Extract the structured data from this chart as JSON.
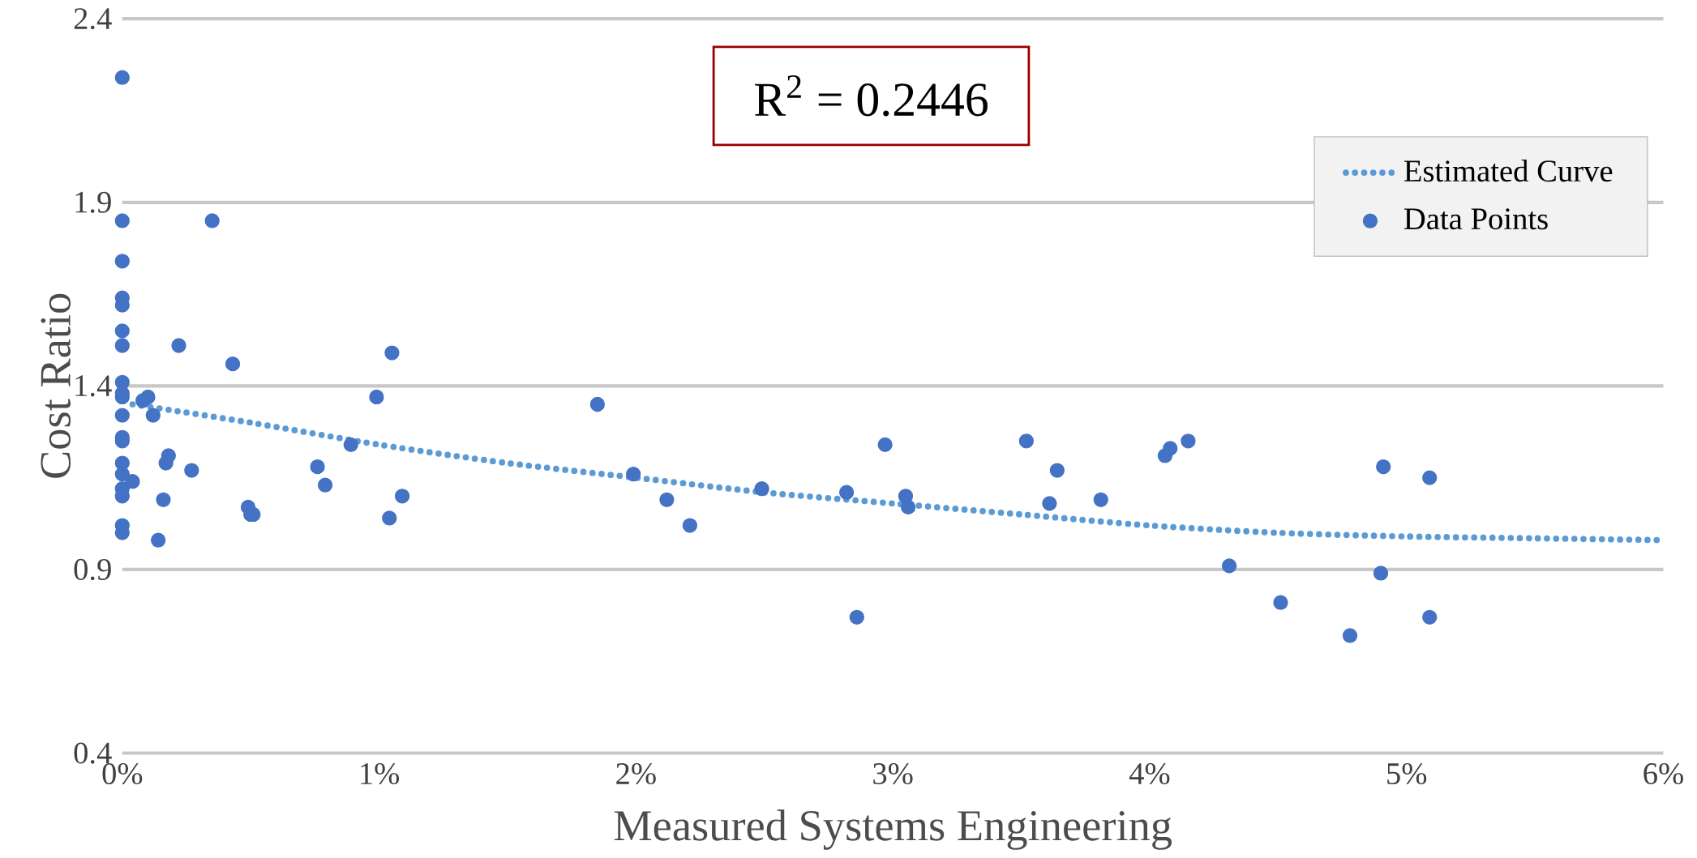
{
  "chart_data": {
    "type": "scatter",
    "xlabel": "Measured Systems Engineering",
    "ylabel": "Cost Ratio",
    "annotations": [
      "R$^{2}$ = 0.2446"
    ],
    "xlim": [
      0,
      6
    ],
    "ylim": [
      0.4,
      2.4
    ],
    "xticks": [
      {
        "value": 0,
        "label": "0%"
      },
      {
        "value": 1,
        "label": "1%"
      },
      {
        "value": 2,
        "label": "2%"
      },
      {
        "value": 3,
        "label": "3%"
      },
      {
        "value": 4,
        "label": "4%"
      },
      {
        "value": 5,
        "label": "5%"
      },
      {
        "value": 6,
        "label": "6%"
      }
    ],
    "yticks": [
      0.4,
      0.9,
      1.4,
      1.9,
      2.4
    ],
    "grid": "y",
    "legend": "top right",
    "series": [
      {
        "name": "Estimated Curve",
        "type": "line",
        "line_style": "dotted",
        "marker": "none",
        "color": "#5b9bd5",
        "x": [
          0.04,
          0.5,
          1,
          1.5,
          2,
          2.5,
          3,
          3.5,
          4,
          4.5,
          5,
          5.5,
          6
        ],
        "values": [
          1.35,
          1.3,
          1.24,
          1.19,
          1.15,
          1.11,
          1.08,
          1.05,
          1.02,
          1.0,
          0.99,
          0.985,
          0.98
        ]
      },
      {
        "name": "Data Points",
        "marker": "circle",
        "color": "#4472c4",
        "x": [
          0,
          0,
          0,
          0,
          0,
          0,
          0,
          0,
          0,
          0,
          0,
          0,
          0,
          0,
          0,
          0,
          0,
          0,
          0,
          0.04,
          0.08,
          0.1,
          0.12,
          0.14,
          0.16,
          0.17,
          0.18,
          0.22,
          0.27,
          0.35,
          0.43,
          0.49,
          0.5,
          0.51,
          0.76,
          0.79,
          0.89,
          0.99,
          1.04,
          1.05,
          1.09,
          1.85,
          1.99,
          2.12,
          2.21,
          2.49,
          2.82,
          2.86,
          2.97,
          3.05,
          3.06,
          3.52,
          3.61,
          3.64,
          3.81,
          4.06,
          4.08,
          4.15,
          4.31,
          4.51,
          4.78,
          4.9,
          4.91,
          5.09,
          5.09
        ],
        "values": [
          2.24,
          1.85,
          1.74,
          1.64,
          1.62,
          1.55,
          1.51,
          1.41,
          1.38,
          1.37,
          1.32,
          1.26,
          1.25,
          1.19,
          1.16,
          1.12,
          1.1,
          1.02,
          1.0,
          1.14,
          1.36,
          1.37,
          1.32,
          0.98,
          1.09,
          1.19,
          1.21,
          1.51,
          1.17,
          1.85,
          1.46,
          1.07,
          1.05,
          1.05,
          1.18,
          1.13,
          1.24,
          1.37,
          1.04,
          1.49,
          1.1,
          1.35,
          1.16,
          1.09,
          1.02,
          1.12,
          1.11,
          0.77,
          1.24,
          1.1,
          1.07,
          1.25,
          1.08,
          1.17,
          1.09,
          1.21,
          1.23,
          1.25,
          0.91,
          0.81,
          0.72,
          0.89,
          1.18,
          0.77,
          1.15
        ]
      }
    ]
  }
}
